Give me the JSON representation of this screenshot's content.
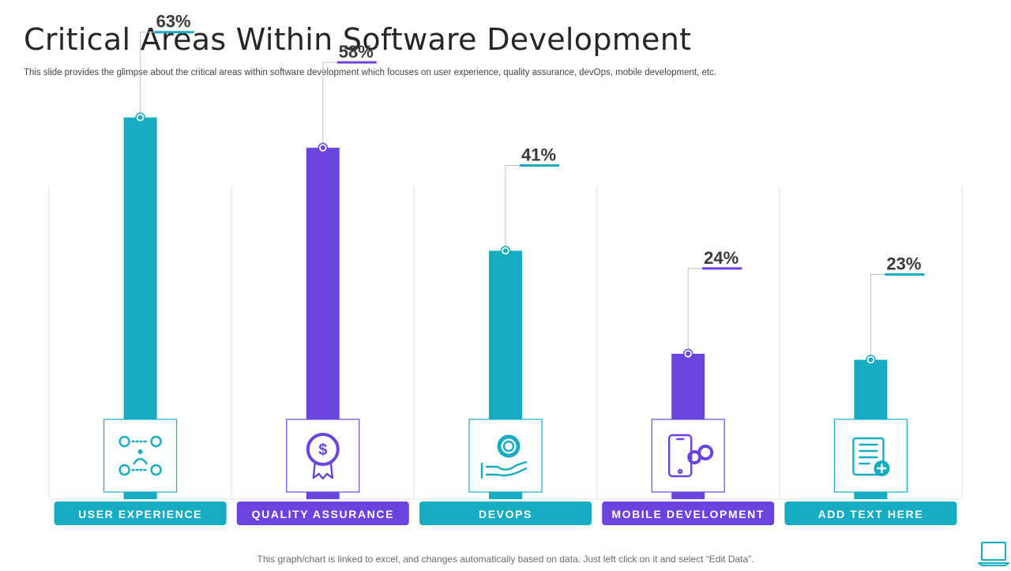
{
  "title": "Critical Areas Within Software Development",
  "subtitle": "This slide provides the glimpse about the critical areas within software development which focuses on user experience, quality assurance, devOps, mobile development, etc.",
  "footer": "This graph/chart is linked to excel,  and changes automatically based on data. Just left click on it and select “Edit Data”.",
  "colors": {
    "teal": "#16adc3",
    "purple": "#6b44e0",
    "text": "#3a3a3a",
    "grid": "#e3e3e3"
  },
  "chart_data": {
    "type": "bar",
    "title": "Critical Areas Within Software Development",
    "categories": [
      "USER EXPERIENCE",
      "QUALITY ASSURANCE",
      "DEVOPS",
      "MOBILE DEVELOPMENT",
      "ADD TEXT HERE"
    ],
    "values": [
      63,
      58,
      41,
      24,
      23
    ],
    "data_labels": [
      "63%",
      "58%",
      "41%",
      "24%",
      "23%"
    ],
    "bar_colors": [
      "teal",
      "purple",
      "teal",
      "purple",
      "teal"
    ],
    "icons": [
      "user-experience-icon",
      "quality-badge-icon",
      "devops-hand-gear-icon",
      "mobile-gears-icon",
      "document-add-icon"
    ],
    "ylim": [
      0,
      70
    ],
    "grid": false,
    "xlabel": "",
    "ylabel": ""
  }
}
